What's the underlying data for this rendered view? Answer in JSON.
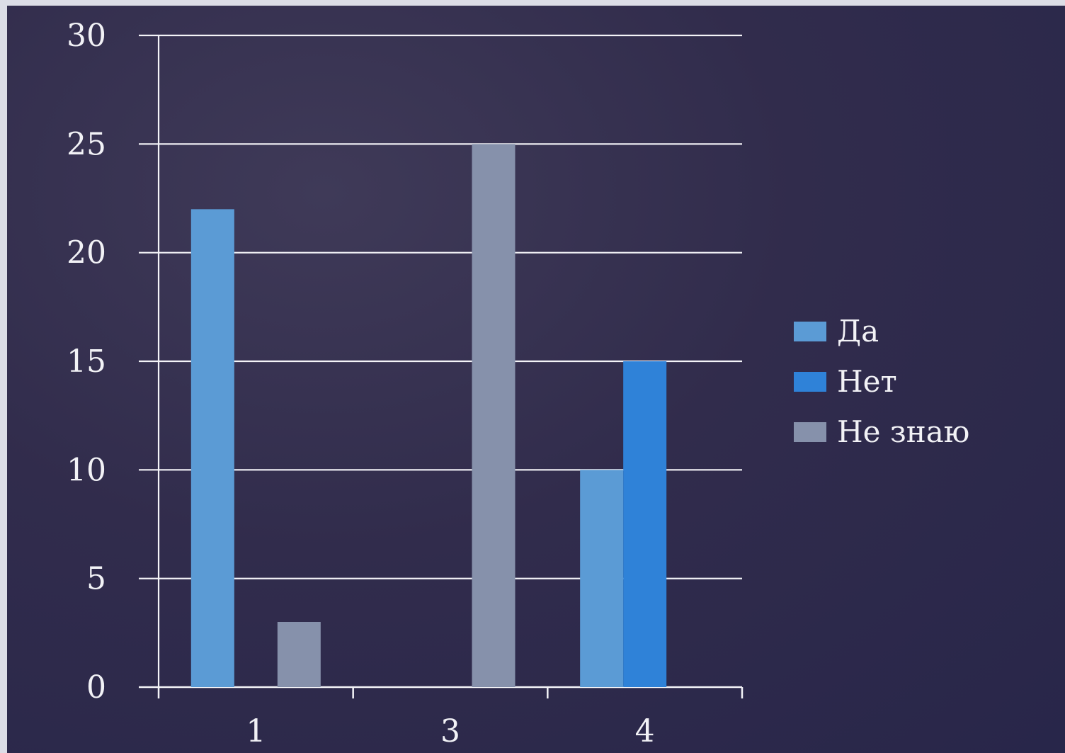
{
  "chart_data": {
    "type": "bar",
    "categories": [
      "1",
      "3",
      "4"
    ],
    "series": [
      {
        "name": "Да",
        "values": [
          22,
          0,
          10
        ],
        "color": "#5b9bd5"
      },
      {
        "name": "Нет",
        "values": [
          0,
          0,
          15
        ],
        "color": "#2f82d8"
      },
      {
        "name": "Не знаю",
        "values": [
          3,
          25,
          0
        ],
        "color": "#8691ab"
      }
    ],
    "ylim": [
      0,
      30
    ],
    "yticks": [
      0,
      5,
      10,
      15,
      20,
      25,
      30
    ],
    "grid": true,
    "legend": "right",
    "title": "",
    "xlabel": "",
    "ylabel": ""
  }
}
